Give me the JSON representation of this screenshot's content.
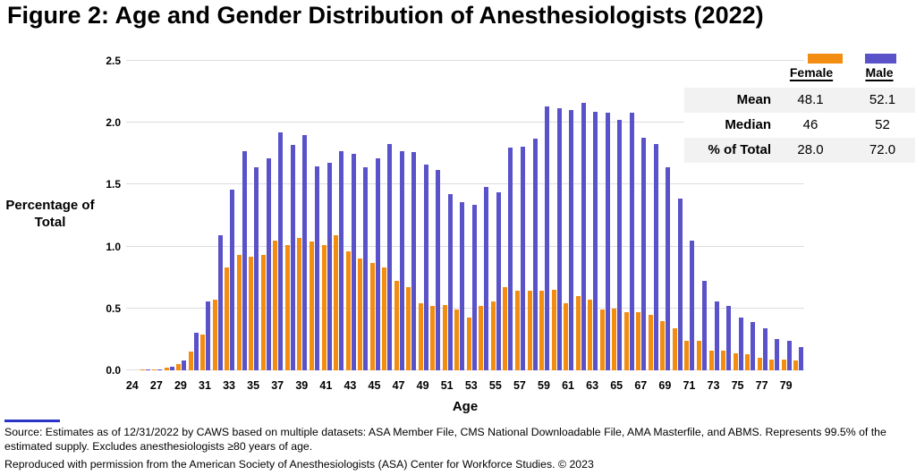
{
  "title": "Figure 2: Age and Gender Distribution of Anesthesiologists (2022)",
  "chart_data": {
    "type": "bar",
    "title": "Figure 2: Age and Gender Distribution of Anesthesiologists (2022)",
    "xlabel": "Age",
    "ylabel": "Percentage of Total",
    "ylim": [
      0,
      2.5
    ],
    "ytick_labels": [
      "0.0",
      "0.5",
      "1.0",
      "1.5",
      "2.0",
      "2.5"
    ],
    "ytick_values": [
      0,
      0.5,
      1.0,
      1.5,
      2.0,
      2.5
    ],
    "x_tick_labels": [
      "24",
      "27",
      "29",
      "31",
      "33",
      "35",
      "37",
      "39",
      "41",
      "43",
      "45",
      "47",
      "49",
      "51",
      "53",
      "55",
      "57",
      "59",
      "61",
      "63",
      "65",
      "67",
      "69",
      "71",
      "73",
      "75",
      "77",
      "79"
    ],
    "ages": [
      24,
      25,
      26,
      27,
      28,
      29,
      30,
      31,
      32,
      33,
      34,
      35,
      36,
      37,
      38,
      39,
      40,
      41,
      42,
      43,
      44,
      45,
      46,
      47,
      48,
      49,
      50,
      51,
      52,
      53,
      54,
      55,
      56,
      57,
      58,
      59,
      60,
      61,
      62,
      63,
      64,
      65,
      66,
      67,
      68,
      69,
      70,
      71,
      72,
      73,
      74,
      75,
      76,
      77,
      78,
      79
    ],
    "grid": "horizontal",
    "legend_position": "top-right",
    "series": [
      {
        "name": "Female",
        "color": "#F28D11",
        "values": [
          0.0,
          0.005,
          0.01,
          0.02,
          0.05,
          0.15,
          0.29,
          0.57,
          0.83,
          0.93,
          0.92,
          0.93,
          1.05,
          1.01,
          1.07,
          1.04,
          1.01,
          1.09,
          0.96,
          0.9,
          0.87,
          0.83,
          0.72,
          0.67,
          0.54,
          0.52,
          0.53,
          0.49,
          0.43,
          0.52,
          0.56,
          0.67,
          0.64,
          0.64,
          0.64,
          0.65,
          0.54,
          0.6,
          0.57,
          0.49,
          0.5,
          0.47,
          0.47,
          0.45,
          0.4,
          0.34,
          0.24,
          0.24,
          0.16,
          0.16,
          0.14,
          0.13,
          0.1,
          0.09,
          0.09,
          0.08
        ]
      },
      {
        "name": "Male",
        "color": "#5A52C9",
        "values": [
          0.0,
          0.005,
          0.01,
          0.03,
          0.08,
          0.3,
          0.56,
          1.09,
          1.46,
          1.77,
          1.64,
          1.71,
          1.92,
          1.82,
          1.9,
          1.65,
          1.68,
          1.77,
          1.75,
          1.64,
          1.71,
          1.83,
          1.77,
          1.76,
          1.66,
          1.62,
          1.42,
          1.36,
          1.34,
          1.48,
          1.44,
          1.8,
          1.81,
          1.87,
          2.13,
          2.12,
          2.1,
          2.16,
          2.09,
          2.08,
          2.02,
          2.08,
          1.88,
          1.83,
          1.64,
          1.39,
          1.05,
          0.72,
          0.56,
          0.52,
          0.43,
          0.39,
          0.34,
          0.25,
          0.24,
          0.19
        ]
      }
    ]
  },
  "legend": {
    "female": "Female",
    "male": "Male"
  },
  "stats_table": {
    "columns": [
      "Female",
      "Male"
    ],
    "rows": [
      {
        "label": "Mean",
        "female": "48.1",
        "male": "52.1"
      },
      {
        "label": "Median",
        "female": "46",
        "male": "52"
      },
      {
        "label": "% of Total",
        "female": "28.0",
        "male": "72.0"
      }
    ]
  },
  "footer": {
    "source": "Source: Estimates as of 12/31/2022 by CAWS based on multiple datasets: ASA Member File, CMS National Downloadable File, AMA Masterfile, and ABMS. Represents 99.5% of the estimated supply. Excludes anesthesiologists ≥80 years of age.",
    "attribution": "Reproduced with permission from the American Society of Anesthesiologists (ASA) Center for Workforce Studies. © 2023"
  },
  "colors": {
    "female": "#F28D11",
    "male": "#5A52C9",
    "gridline": "#DCDCDC",
    "table_row_bg": "#F2F2F2",
    "footer_rule": "#2A35C8"
  }
}
